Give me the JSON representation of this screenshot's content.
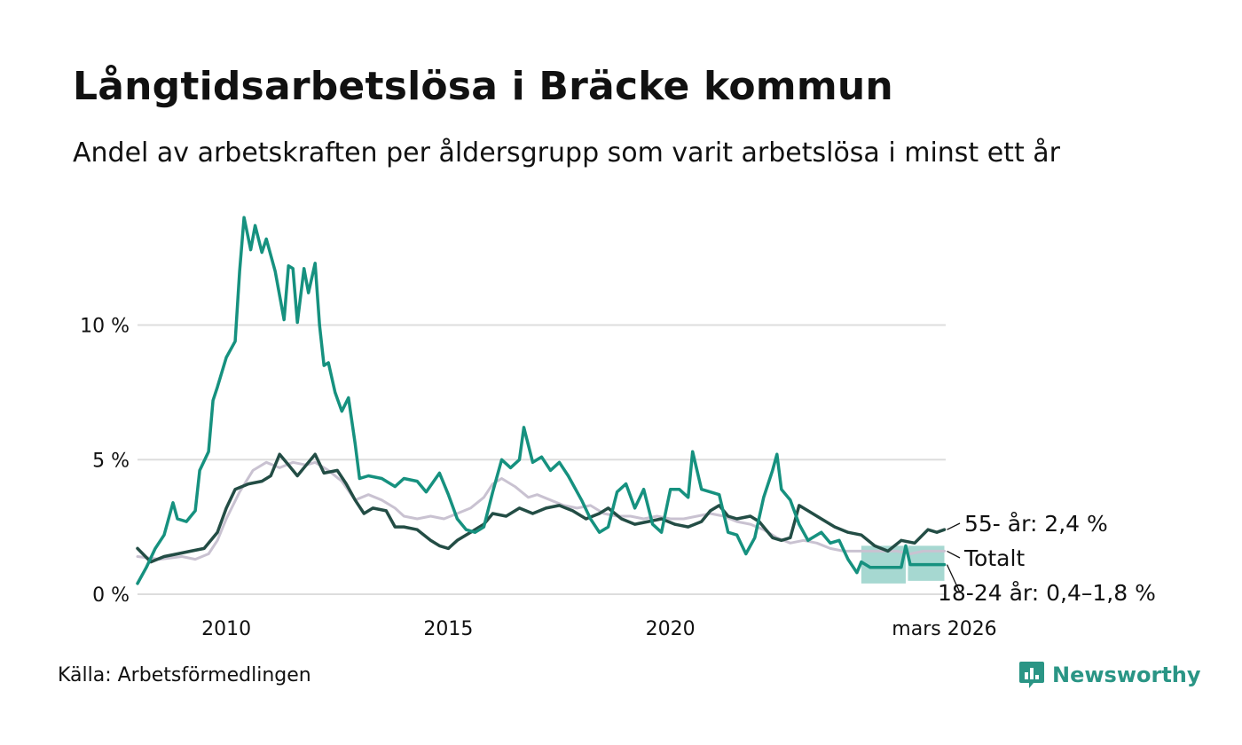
{
  "header": {
    "title": "Långtidsarbetslösa i Bräcke kommun",
    "subtitle": "Andel av arbetskraften per åldersgrupp som varit arbetslösa i minst ett år"
  },
  "footer": {
    "source": "Källa: Arbetsförmedlingen",
    "brand": "Newsworthy"
  },
  "colors": {
    "age_18_24": "#16917f",
    "band_18_24": "#a6d8d1",
    "age_55": "#234d45",
    "total": "#c9c2d1",
    "grid": "#dddddd",
    "brand": "#2a9585"
  },
  "chart_data": {
    "type": "line",
    "title": "Långtidsarbetslösa i Bräcke kommun",
    "subtitle": "Andel av arbetskraften per åldersgrupp som varit arbetslösa i minst ett år",
    "xlabel": "",
    "ylabel": "",
    "x_unit": "year (decimal)",
    "xlim": [
      2008.0,
      2026.2
    ],
    "ylim": [
      0,
      14.5
    ],
    "y_ticks": [
      {
        "value": 0,
        "label": "0 %"
      },
      {
        "value": 5,
        "label": "5 %"
      },
      {
        "value": 10,
        "label": "10 %"
      }
    ],
    "x_ticks": [
      {
        "value": 2010,
        "label": "2010"
      },
      {
        "value": 2015,
        "label": "2015"
      },
      {
        "value": 2020,
        "label": "2020"
      },
      {
        "value": 2026.17,
        "label": "mars 2026"
      }
    ],
    "grid": true,
    "legend": "direct labels at line ends (right)",
    "series": [
      {
        "name": "Totalt",
        "label": "Totalt",
        "color": "#c9c2d1",
        "points": [
          [
            2008.0,
            1.4
          ],
          [
            2008.5,
            1.3
          ],
          [
            2009.0,
            1.4
          ],
          [
            2009.3,
            1.3
          ],
          [
            2009.6,
            1.5
          ],
          [
            2009.8,
            2.0
          ],
          [
            2010.0,
            2.8
          ],
          [
            2010.3,
            3.8
          ],
          [
            2010.6,
            4.6
          ],
          [
            2010.9,
            4.9
          ],
          [
            2011.2,
            4.7
          ],
          [
            2011.5,
            4.9
          ],
          [
            2011.8,
            4.8
          ],
          [
            2012.0,
            4.9
          ],
          [
            2012.3,
            4.6
          ],
          [
            2012.6,
            4.2
          ],
          [
            2012.9,
            3.5
          ],
          [
            2013.2,
            3.7
          ],
          [
            2013.5,
            3.5
          ],
          [
            2013.8,
            3.2
          ],
          [
            2014.0,
            2.9
          ],
          [
            2014.3,
            2.8
          ],
          [
            2014.6,
            2.9
          ],
          [
            2014.9,
            2.8
          ],
          [
            2015.2,
            3.0
          ],
          [
            2015.5,
            3.2
          ],
          [
            2015.8,
            3.6
          ],
          [
            2016.0,
            4.1
          ],
          [
            2016.2,
            4.3
          ],
          [
            2016.5,
            4.0
          ],
          [
            2016.8,
            3.6
          ],
          [
            2017.0,
            3.7
          ],
          [
            2017.3,
            3.5
          ],
          [
            2017.6,
            3.3
          ],
          [
            2017.9,
            3.2
          ],
          [
            2018.2,
            3.3
          ],
          [
            2018.5,
            3.0
          ],
          [
            2018.8,
            2.9
          ],
          [
            2019.1,
            2.9
          ],
          [
            2019.4,
            2.8
          ],
          [
            2019.7,
            2.9
          ],
          [
            2020.0,
            2.8
          ],
          [
            2020.3,
            2.8
          ],
          [
            2020.6,
            2.9
          ],
          [
            2020.9,
            3.0
          ],
          [
            2021.2,
            2.9
          ],
          [
            2021.5,
            2.7
          ],
          [
            2021.8,
            2.6
          ],
          [
            2022.1,
            2.4
          ],
          [
            2022.4,
            2.1
          ],
          [
            2022.7,
            1.9
          ],
          [
            2023.0,
            2.0
          ],
          [
            2023.3,
            1.9
          ],
          [
            2023.6,
            1.7
          ],
          [
            2023.9,
            1.6
          ],
          [
            2024.2,
            1.6
          ],
          [
            2024.5,
            1.6
          ],
          [
            2024.8,
            1.6
          ],
          [
            2025.1,
            1.6
          ],
          [
            2025.4,
            1.5
          ],
          [
            2025.7,
            1.6
          ],
          [
            2026.17,
            1.6
          ]
        ]
      },
      {
        "name": "55- år",
        "label": "55- år: 2,4 %",
        "color": "#234d45",
        "points": [
          [
            2008.0,
            1.7
          ],
          [
            2008.3,
            1.2
          ],
          [
            2008.6,
            1.4
          ],
          [
            2008.9,
            1.5
          ],
          [
            2009.2,
            1.6
          ],
          [
            2009.5,
            1.7
          ],
          [
            2009.8,
            2.3
          ],
          [
            2010.0,
            3.2
          ],
          [
            2010.2,
            3.9
          ],
          [
            2010.5,
            4.1
          ],
          [
            2010.8,
            4.2
          ],
          [
            2011.0,
            4.4
          ],
          [
            2011.2,
            5.2
          ],
          [
            2011.4,
            4.8
          ],
          [
            2011.6,
            4.4
          ],
          [
            2011.8,
            4.8
          ],
          [
            2012.0,
            5.2
          ],
          [
            2012.2,
            4.5
          ],
          [
            2012.5,
            4.6
          ],
          [
            2012.7,
            4.1
          ],
          [
            2012.9,
            3.5
          ],
          [
            2013.1,
            3.0
          ],
          [
            2013.3,
            3.2
          ],
          [
            2013.6,
            3.1
          ],
          [
            2013.8,
            2.5
          ],
          [
            2014.0,
            2.5
          ],
          [
            2014.3,
            2.4
          ],
          [
            2014.6,
            2.0
          ],
          [
            2014.8,
            1.8
          ],
          [
            2015.0,
            1.7
          ],
          [
            2015.2,
            2.0
          ],
          [
            2015.5,
            2.3
          ],
          [
            2015.8,
            2.6
          ],
          [
            2016.0,
            3.0
          ],
          [
            2016.3,
            2.9
          ],
          [
            2016.6,
            3.2
          ],
          [
            2016.9,
            3.0
          ],
          [
            2017.2,
            3.2
          ],
          [
            2017.5,
            3.3
          ],
          [
            2017.8,
            3.1
          ],
          [
            2018.1,
            2.8
          ],
          [
            2018.4,
            3.0
          ],
          [
            2018.6,
            3.2
          ],
          [
            2018.9,
            2.8
          ],
          [
            2019.2,
            2.6
          ],
          [
            2019.5,
            2.7
          ],
          [
            2019.8,
            2.8
          ],
          [
            2020.1,
            2.6
          ],
          [
            2020.4,
            2.5
          ],
          [
            2020.7,
            2.7
          ],
          [
            2020.9,
            3.1
          ],
          [
            2021.1,
            3.3
          ],
          [
            2021.3,
            2.9
          ],
          [
            2021.5,
            2.8
          ],
          [
            2021.8,
            2.9
          ],
          [
            2022.0,
            2.7
          ],
          [
            2022.3,
            2.1
          ],
          [
            2022.5,
            2.0
          ],
          [
            2022.7,
            2.1
          ],
          [
            2022.9,
            3.3
          ],
          [
            2023.1,
            3.1
          ],
          [
            2023.4,
            2.8
          ],
          [
            2023.7,
            2.5
          ],
          [
            2024.0,
            2.3
          ],
          [
            2024.3,
            2.2
          ],
          [
            2024.6,
            1.8
          ],
          [
            2024.9,
            1.6
          ],
          [
            2025.2,
            2.0
          ],
          [
            2025.5,
            1.9
          ],
          [
            2025.8,
            2.4
          ],
          [
            2026.0,
            2.3
          ],
          [
            2026.17,
            2.4
          ]
        ]
      },
      {
        "name": "18-24 år",
        "label": "18-24 år: 0,4–1,8 %",
        "color": "#16917f",
        "points": [
          [
            2008.0,
            0.4
          ],
          [
            2008.2,
            1.0
          ],
          [
            2008.4,
            1.7
          ],
          [
            2008.6,
            2.2
          ],
          [
            2008.8,
            3.4
          ],
          [
            2008.9,
            2.8
          ],
          [
            2009.1,
            2.7
          ],
          [
            2009.3,
            3.1
          ],
          [
            2009.4,
            4.6
          ],
          [
            2009.6,
            5.3
          ],
          [
            2009.7,
            7.2
          ],
          [
            2009.8,
            7.7
          ],
          [
            2010.0,
            8.8
          ],
          [
            2010.2,
            9.4
          ],
          [
            2010.3,
            12.0
          ],
          [
            2010.4,
            14.0
          ],
          [
            2010.55,
            12.8
          ],
          [
            2010.65,
            13.7
          ],
          [
            2010.8,
            12.7
          ],
          [
            2010.9,
            13.2
          ],
          [
            2011.1,
            12.0
          ],
          [
            2011.3,
            10.2
          ],
          [
            2011.4,
            12.2
          ],
          [
            2011.5,
            12.1
          ],
          [
            2011.6,
            10.1
          ],
          [
            2011.75,
            12.1
          ],
          [
            2011.85,
            11.2
          ],
          [
            2012.0,
            12.3
          ],
          [
            2012.1,
            10.0
          ],
          [
            2012.2,
            8.5
          ],
          [
            2012.3,
            8.6
          ],
          [
            2012.45,
            7.5
          ],
          [
            2012.6,
            6.8
          ],
          [
            2012.75,
            7.3
          ],
          [
            2012.9,
            5.6
          ],
          [
            2013.0,
            4.3
          ],
          [
            2013.2,
            4.4
          ],
          [
            2013.5,
            4.3
          ],
          [
            2013.8,
            4.0
          ],
          [
            2014.0,
            4.3
          ],
          [
            2014.3,
            4.2
          ],
          [
            2014.5,
            3.8
          ],
          [
            2014.8,
            4.5
          ],
          [
            2015.0,
            3.7
          ],
          [
            2015.2,
            2.8
          ],
          [
            2015.4,
            2.4
          ],
          [
            2015.6,
            2.3
          ],
          [
            2015.8,
            2.5
          ],
          [
            2016.0,
            3.8
          ],
          [
            2016.2,
            5.0
          ],
          [
            2016.4,
            4.7
          ],
          [
            2016.6,
            5.0
          ],
          [
            2016.7,
            6.2
          ],
          [
            2016.9,
            4.9
          ],
          [
            2017.1,
            5.1
          ],
          [
            2017.3,
            4.6
          ],
          [
            2017.5,
            4.9
          ],
          [
            2017.7,
            4.4
          ],
          [
            2018.0,
            3.5
          ],
          [
            2018.2,
            2.8
          ],
          [
            2018.4,
            2.3
          ],
          [
            2018.6,
            2.5
          ],
          [
            2018.8,
            3.8
          ],
          [
            2019.0,
            4.1
          ],
          [
            2019.2,
            3.2
          ],
          [
            2019.4,
            3.9
          ],
          [
            2019.6,
            2.6
          ],
          [
            2019.8,
            2.3
          ],
          [
            2020.0,
            3.9
          ],
          [
            2020.2,
            3.9
          ],
          [
            2020.4,
            3.6
          ],
          [
            2020.5,
            5.3
          ],
          [
            2020.7,
            3.9
          ],
          [
            2020.9,
            3.8
          ],
          [
            2021.1,
            3.7
          ],
          [
            2021.3,
            2.3
          ],
          [
            2021.5,
            2.2
          ],
          [
            2021.7,
            1.5
          ],
          [
            2021.9,
            2.1
          ],
          [
            2022.1,
            3.6
          ],
          [
            2022.3,
            4.6
          ],
          [
            2022.4,
            5.2
          ],
          [
            2022.5,
            3.9
          ],
          [
            2022.7,
            3.5
          ],
          [
            2022.9,
            2.6
          ],
          [
            2023.1,
            2.0
          ],
          [
            2023.4,
            2.3
          ],
          [
            2023.6,
            1.9
          ],
          [
            2023.8,
            2.0
          ],
          [
            2024.0,
            1.3
          ],
          [
            2024.2,
            0.8
          ],
          [
            2024.3,
            1.2
          ],
          [
            2024.5,
            1.0
          ],
          [
            2025.0,
            1.0
          ],
          [
            2025.2,
            1.0
          ],
          [
            2025.3,
            1.8
          ],
          [
            2025.4,
            1.1
          ],
          [
            2025.8,
            1.1
          ],
          [
            2026.17,
            1.1
          ]
        ]
      }
    ],
    "confidence_band": {
      "series": "18-24 år",
      "segments": [
        [
          [
            2024.3,
            0.4,
            1.8
          ],
          [
            2025.3,
            0.4,
            1.8
          ]
        ],
        [
          [
            2025.35,
            0.5,
            1.8
          ],
          [
            2026.17,
            0.5,
            1.8
          ]
        ]
      ]
    }
  }
}
